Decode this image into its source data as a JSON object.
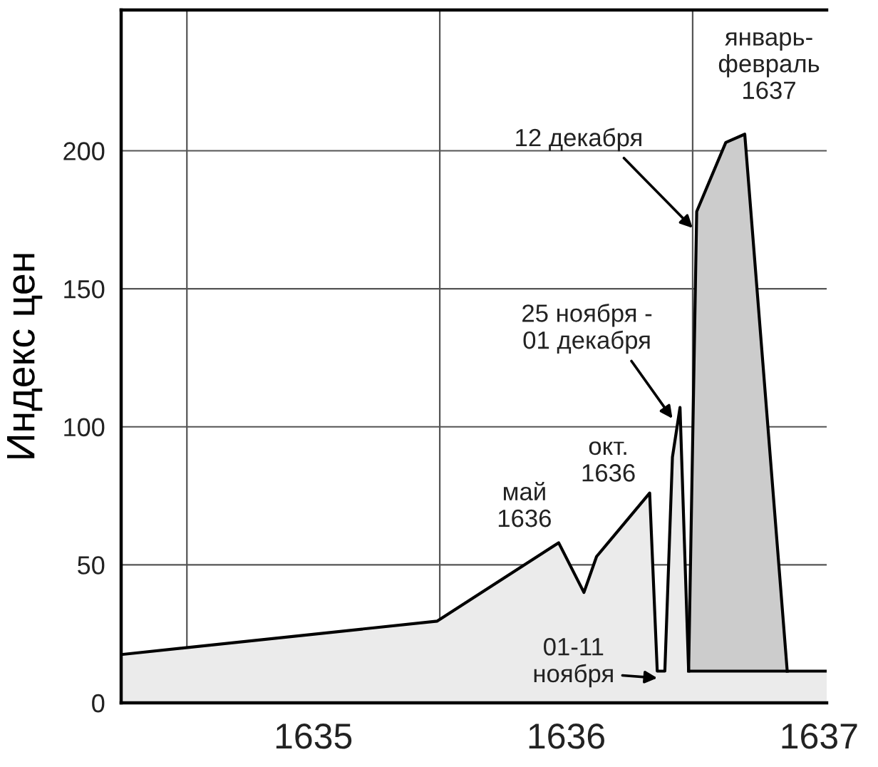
{
  "chart_data": {
    "type": "area",
    "ylabel": "Индекс цен",
    "xlim": [
      1634.74,
      1637.53
    ],
    "ylim": [
      0,
      251
    ],
    "xticks": [
      {
        "value": 1635.5,
        "label": "1635"
      },
      {
        "value": 1636.5,
        "label": "1636"
      },
      {
        "value": 1637.5,
        "label": "1637"
      }
    ],
    "yticks": [
      0,
      50,
      100,
      150,
      200
    ],
    "grid": "y",
    "ref_lines": [
      {
        "axis": "x",
        "value": 1635,
        "color": "#555555"
      },
      {
        "axis": "x",
        "value": 1636,
        "color": "#555555"
      },
      {
        "axis": "x",
        "value": 1637,
        "color": "#555555"
      }
    ],
    "series": [
      {
        "color": "#ebebeb",
        "x": [
          1634.74,
          1635.99,
          1636.47,
          1636.57,
          1636.62,
          1636.83,
          1636.86,
          1636.89,
          1636.92,
          1636.95,
          1636.984,
          1637.53
        ],
        "values": [
          17.5,
          29.6,
          58,
          40,
          53,
          76,
          11.5,
          11.5,
          89,
          107,
          11.5,
          11.5
        ]
      },
      {
        "color": "#cccccc",
        "x": [
          1636.984,
          1637.016,
          1637.131,
          1637.206,
          1637.374
        ],
        "values": [
          11.5,
          178,
          203,
          206,
          11.5
        ]
      }
    ],
    "annotations": [
      {
        "text": "май\n1636",
        "x": 1636.47,
        "y": 58
      },
      {
        "text": "окт.\n1636",
        "x": 1636.83,
        "y": 76
      },
      {
        "text": "25 ноября -\n01 декабря",
        "x": 1636.92,
        "y": 103
      },
      {
        "text": "12 декабря",
        "x": 1637.0,
        "y": 172
      },
      {
        "text": "январь-\nфевраль\n1637",
        "x": 1637.206,
        "y": 206
      },
      {
        "text": "01-11\nноября",
        "x": 1636.86,
        "y": 9
      }
    ]
  }
}
